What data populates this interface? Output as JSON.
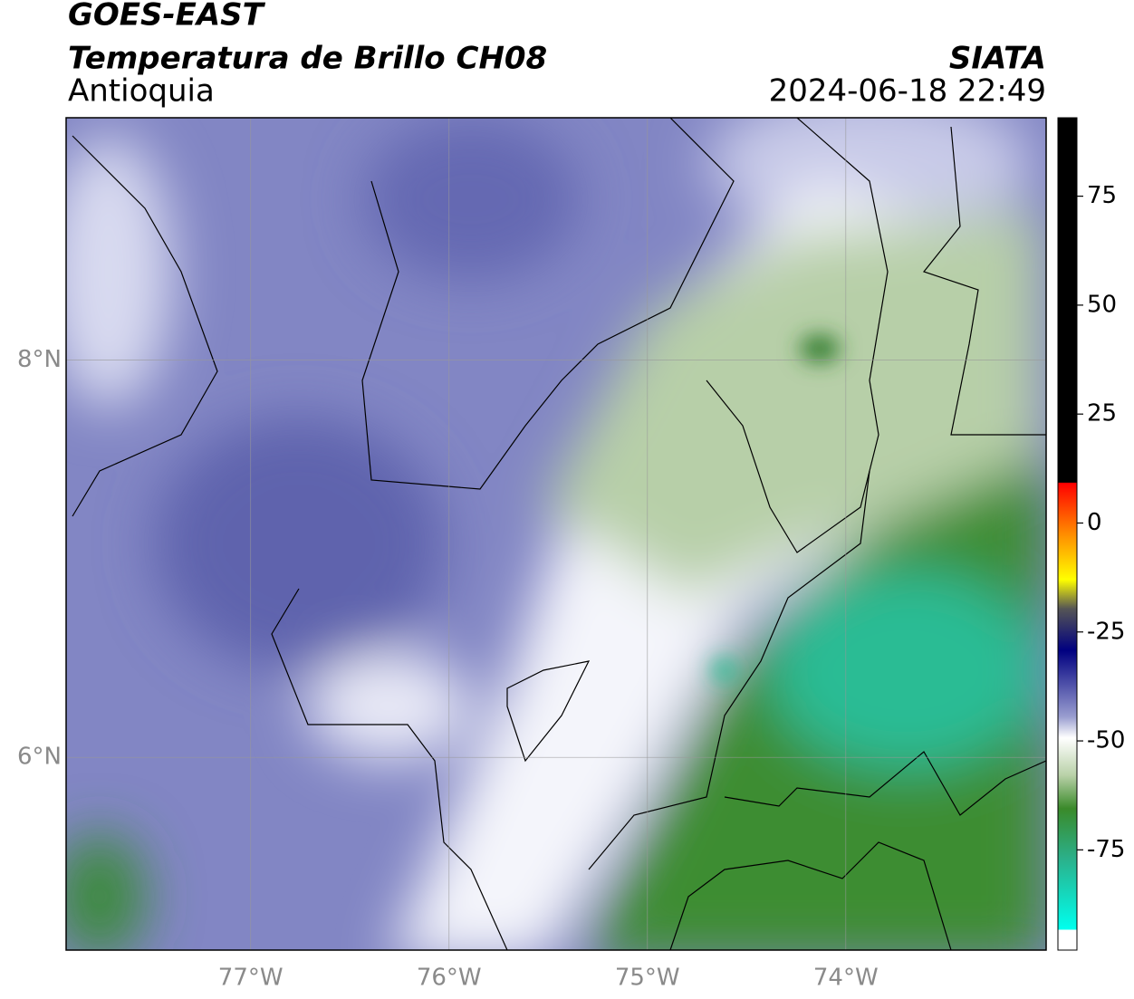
{
  "header": {
    "satellite": "GOES-EAST",
    "product": "Temperatura de Brillo CH08",
    "region": "Antioquia",
    "source": "SIATA",
    "datetime": "2024-06-18 22:49"
  },
  "map": {
    "lonlim": [
      -77.93,
      -72.99
    ],
    "latlim": [
      5.03,
      9.22
    ],
    "lon_ticks": [
      {
        "value": -77,
        "label": "77°W"
      },
      {
        "value": -76,
        "label": "76°W"
      },
      {
        "value": -75,
        "label": "75°W"
      },
      {
        "value": -74,
        "label": "74°W"
      }
    ],
    "lat_ticks": [
      {
        "value": 8,
        "label": "8°N"
      },
      {
        "value": 6,
        "label": "6°N"
      }
    ]
  },
  "colorbar": {
    "lim": [
      -98,
      93
    ],
    "ticks": [
      75,
      50,
      25,
      0,
      -25,
      -50,
      -75
    ]
  }
}
